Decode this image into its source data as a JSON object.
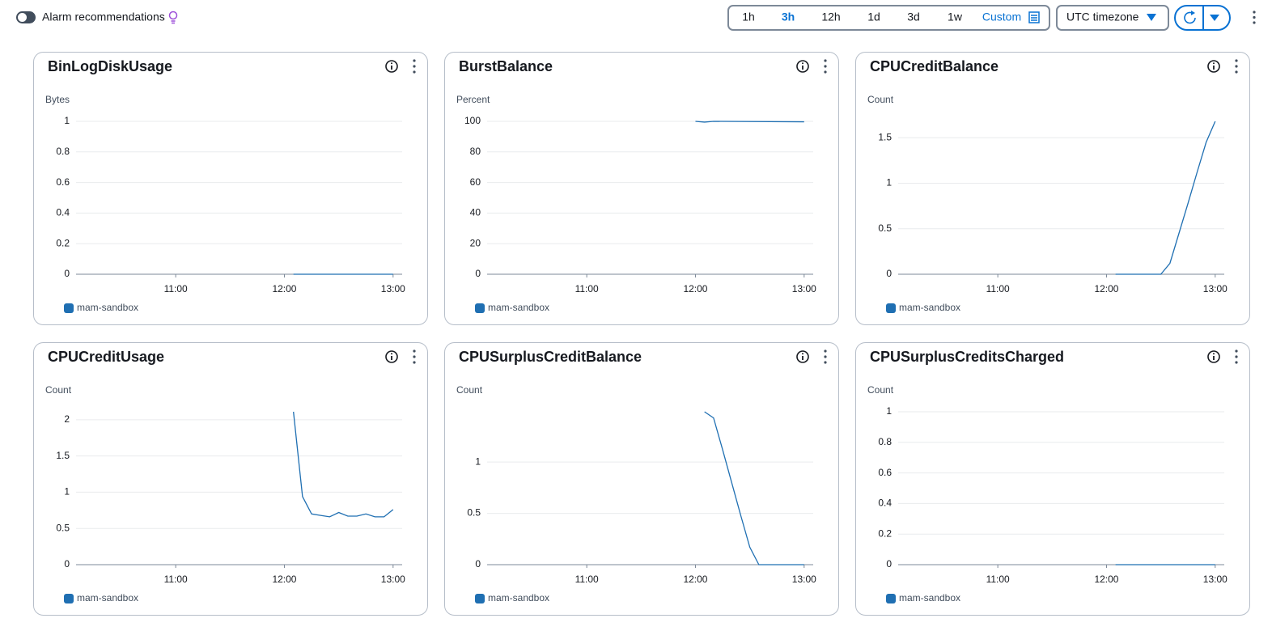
{
  "toolbar": {
    "toggle_label": "Alarm recommendations",
    "ranges": [
      "1h",
      "3h",
      "12h",
      "1d",
      "3d",
      "1w",
      "Custom"
    ],
    "selected_range": "3h",
    "timezone": "UTC timezone"
  },
  "chart_data": [
    {
      "type": "line",
      "title": "BinLogDiskUsage",
      "y_label": "Bytes",
      "xlim": [
        "10:05",
        "13:05"
      ],
      "xticks": [
        "11:00",
        "12:00",
        "13:00"
      ],
      "ylim": [
        0,
        1
      ],
      "yticks": [
        0,
        0.2,
        0.4,
        0.6,
        0.8,
        1
      ],
      "grid": true,
      "x": [
        "12:05",
        "12:10",
        "12:15",
        "12:20",
        "12:25",
        "12:30",
        "12:35",
        "12:40",
        "12:45",
        "12:50",
        "12:55",
        "13:00"
      ],
      "series": [
        {
          "name": "mam-sandbox",
          "color": "#1f6fb2",
          "values": [
            0,
            0,
            0,
            0,
            0,
            0,
            0,
            0,
            0,
            0,
            0,
            0
          ]
        }
      ]
    },
    {
      "type": "line",
      "title": "BurstBalance",
      "y_label": "Percent",
      "xlim": [
        "10:05",
        "13:05"
      ],
      "xticks": [
        "11:00",
        "12:00",
        "13:00"
      ],
      "ylim": [
        0,
        100
      ],
      "yticks": [
        0,
        20,
        40,
        60,
        80,
        100
      ],
      "grid": true,
      "x": [
        "12:00",
        "12:05",
        "12:10",
        "13:00"
      ],
      "series": [
        {
          "name": "mam-sandbox",
          "color": "#1f6fb2",
          "values": [
            100,
            99.5,
            100,
            99.7
          ]
        }
      ]
    },
    {
      "type": "line",
      "title": "CPUCreditBalance",
      "y_label": "Count",
      "xlim": [
        "10:05",
        "13:05"
      ],
      "xticks": [
        "11:00",
        "12:00",
        "13:00"
      ],
      "ylim": [
        0,
        1.68
      ],
      "yticks": [
        0,
        0.5,
        1,
        1.5
      ],
      "grid": true,
      "x": [
        "12:05",
        "12:10",
        "12:15",
        "12:20",
        "12:25",
        "12:30",
        "12:35",
        "12:40",
        "12:45",
        "12:50",
        "12:55",
        "13:00"
      ],
      "series": [
        {
          "name": "mam-sandbox",
          "color": "#1f6fb2",
          "values": [
            0,
            0,
            0,
            0,
            0,
            0,
            0.12,
            0.45,
            0.78,
            1.12,
            1.45,
            1.68
          ]
        }
      ]
    },
    {
      "type": "line",
      "title": "CPUCreditUsage",
      "y_label": "Count",
      "xlim": [
        "10:05",
        "13:05"
      ],
      "xticks": [
        "11:00",
        "12:00",
        "13:00"
      ],
      "ylim": [
        0,
        2.11
      ],
      "yticks": [
        0,
        0.5,
        1,
        1.5,
        2
      ],
      "grid": true,
      "x": [
        "12:05",
        "12:10",
        "12:15",
        "12:20",
        "12:25",
        "12:30",
        "12:35",
        "12:40",
        "12:45",
        "12:50",
        "12:55",
        "13:00"
      ],
      "series": [
        {
          "name": "mam-sandbox",
          "color": "#1f6fb2",
          "values": [
            2.11,
            0.94,
            0.7,
            0.68,
            0.66,
            0.72,
            0.67,
            0.67,
            0.7,
            0.66,
            0.66,
            0.76
          ]
        }
      ]
    },
    {
      "type": "line",
      "title": "CPUSurplusCreditBalance",
      "y_label": "Count",
      "xlim": [
        "10:05",
        "13:05"
      ],
      "xticks": [
        "11:00",
        "12:00",
        "13:00"
      ],
      "ylim": [
        0,
        1.49
      ],
      "yticks": [
        0,
        0.5,
        1
      ],
      "grid": true,
      "x": [
        "12:05",
        "12:10",
        "12:15",
        "12:20",
        "12:25",
        "12:30",
        "12:35",
        "12:40",
        "12:45",
        "12:50",
        "12:55",
        "13:00"
      ],
      "series": [
        {
          "name": "mam-sandbox",
          "color": "#1f6fb2",
          "values": [
            1.49,
            1.43,
            1.12,
            0.8,
            0.48,
            0.17,
            0,
            0,
            0,
            0,
            0,
            0
          ]
        }
      ]
    },
    {
      "type": "line",
      "title": "CPUSurplusCreditsCharged",
      "y_label": "Count",
      "xlim": [
        "10:05",
        "13:05"
      ],
      "xticks": [
        "11:00",
        "12:00",
        "13:00"
      ],
      "ylim": [
        0,
        1
      ],
      "yticks": [
        0,
        0.2,
        0.4,
        0.6,
        0.8,
        1
      ],
      "grid": true,
      "x": [
        "12:05",
        "12:10",
        "12:15",
        "12:20",
        "12:25",
        "12:30",
        "12:35",
        "12:40",
        "12:45",
        "12:50",
        "12:55",
        "13:00"
      ],
      "series": [
        {
          "name": "mam-sandbox",
          "color": "#1f6fb2",
          "values": [
            0,
            0,
            0,
            0,
            0,
            0,
            0,
            0,
            0,
            0,
            0,
            0
          ]
        }
      ]
    }
  ]
}
